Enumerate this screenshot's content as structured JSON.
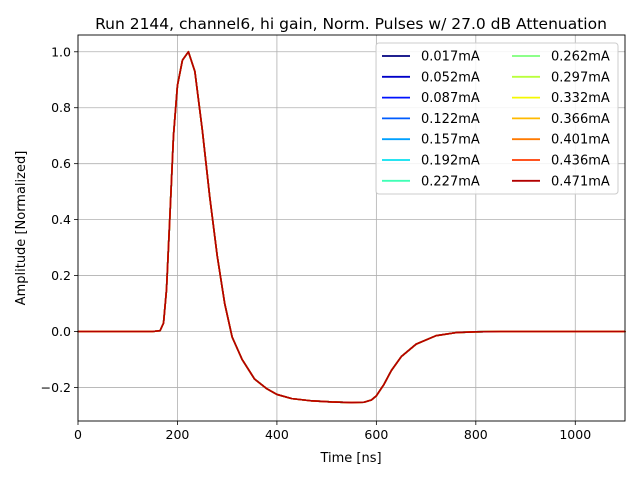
{
  "chart_data": {
    "type": "line",
    "title": "Run 2144, channel6, hi gain, Norm. Pulses w/ 27.0 dB Attenuation",
    "xlabel": "Time [ns]",
    "ylabel": "Amplitude [Normalized]",
    "xlim": [
      0,
      1100
    ],
    "ylim": [
      -0.32,
      1.06
    ],
    "x_ticks": [
      0,
      200,
      400,
      600,
      800,
      1000
    ],
    "y_ticks": [
      -0.2,
      0.0,
      0.2,
      0.4,
      0.6,
      0.8,
      1.0
    ],
    "x_tick_labels": [
      "0",
      "200",
      "400",
      "600",
      "800",
      "1000"
    ],
    "y_tick_labels": [
      "−0.2",
      "0.0",
      "0.2",
      "0.4",
      "0.6",
      "0.8",
      "1.0"
    ],
    "grid": true,
    "legend_position": "top-right",
    "legend_columns": 2,
    "pulse_shape": {
      "x": [
        0,
        150,
        165,
        172,
        178,
        185,
        192,
        200,
        210,
        222,
        235,
        250,
        265,
        280,
        295,
        310,
        330,
        355,
        380,
        400,
        430,
        470,
        510,
        550,
        575,
        590,
        600,
        615,
        630,
        650,
        680,
        720,
        760,
        800,
        850,
        900,
        1000,
        1100
      ],
      "y": [
        0.0,
        0.0,
        0.003,
        0.03,
        0.15,
        0.42,
        0.7,
        0.88,
        0.97,
        1.0,
        0.93,
        0.72,
        0.48,
        0.27,
        0.1,
        -0.02,
        -0.1,
        -0.17,
        -0.205,
        -0.225,
        -0.24,
        -0.248,
        -0.252,
        -0.254,
        -0.253,
        -0.245,
        -0.23,
        -0.19,
        -0.14,
        -0.09,
        -0.045,
        -0.015,
        -0.004,
        -0.001,
        0.0,
        0.0,
        0.0,
        0.0
      ]
    },
    "series": [
      {
        "name": "0.017mA",
        "color": "#00007f"
      },
      {
        "name": "0.052mA",
        "color": "#0000c8"
      },
      {
        "name": "0.087mA",
        "color": "#0012ff"
      },
      {
        "name": "0.122mA",
        "color": "#005cff"
      },
      {
        "name": "0.157mA",
        "color": "#00a0ff"
      },
      {
        "name": "0.192mA",
        "color": "#0ae0ef"
      },
      {
        "name": "0.227mA",
        "color": "#40ffb6"
      },
      {
        "name": "0.262mA",
        "color": "#7dff7a"
      },
      {
        "name": "0.297mA",
        "color": "#baff3c"
      },
      {
        "name": "0.332mA",
        "color": "#f4f802"
      },
      {
        "name": "0.366mA",
        "color": "#ffb900"
      },
      {
        "name": "0.401mA",
        "color": "#ff7a00"
      },
      {
        "name": "0.436mA",
        "color": "#ff3b00"
      },
      {
        "name": "0.471mA",
        "color": "#b20000"
      }
    ]
  }
}
